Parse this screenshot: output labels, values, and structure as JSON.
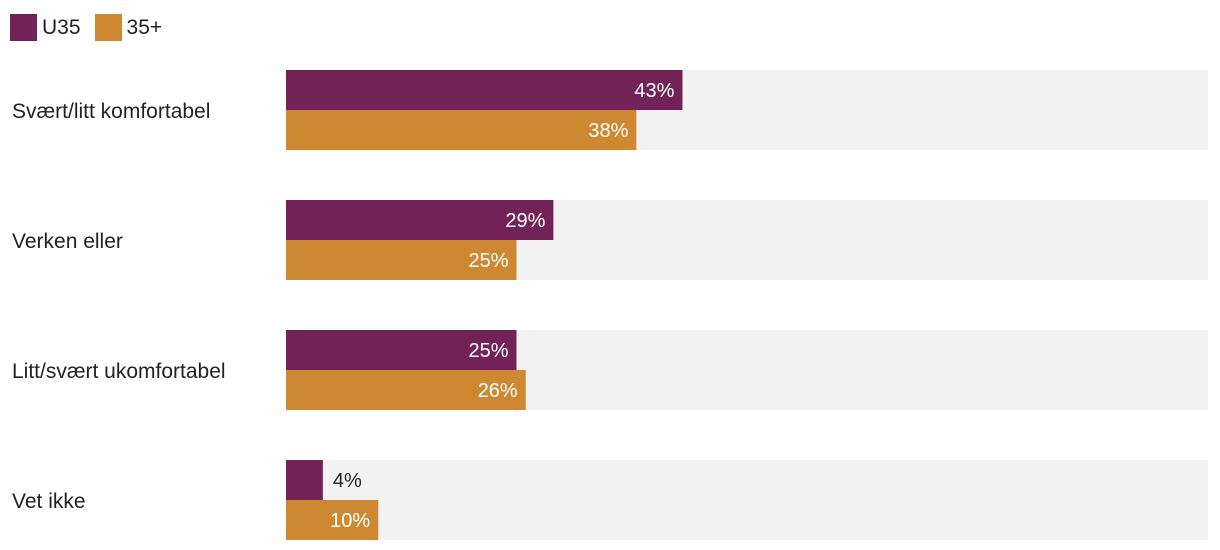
{
  "chart_data": {
    "type": "bar",
    "orientation": "horizontal",
    "categories": [
      "Svært/litt komfortabel",
      "Verken eller",
      "Litt/svært ukomfortabel",
      "Vet ikke"
    ],
    "series": [
      {
        "name": "U35",
        "color": "#722257",
        "values": [
          43,
          29,
          25,
          4
        ]
      },
      {
        "name": "35+",
        "color": "#CF8832",
        "values": [
          38,
          25,
          26,
          10
        ]
      }
    ],
    "value_suffix": "%",
    "xlim": [
      0,
      100
    ],
    "legend_position": "top-left",
    "track_color": "#F2F2F2",
    "grid": false
  }
}
